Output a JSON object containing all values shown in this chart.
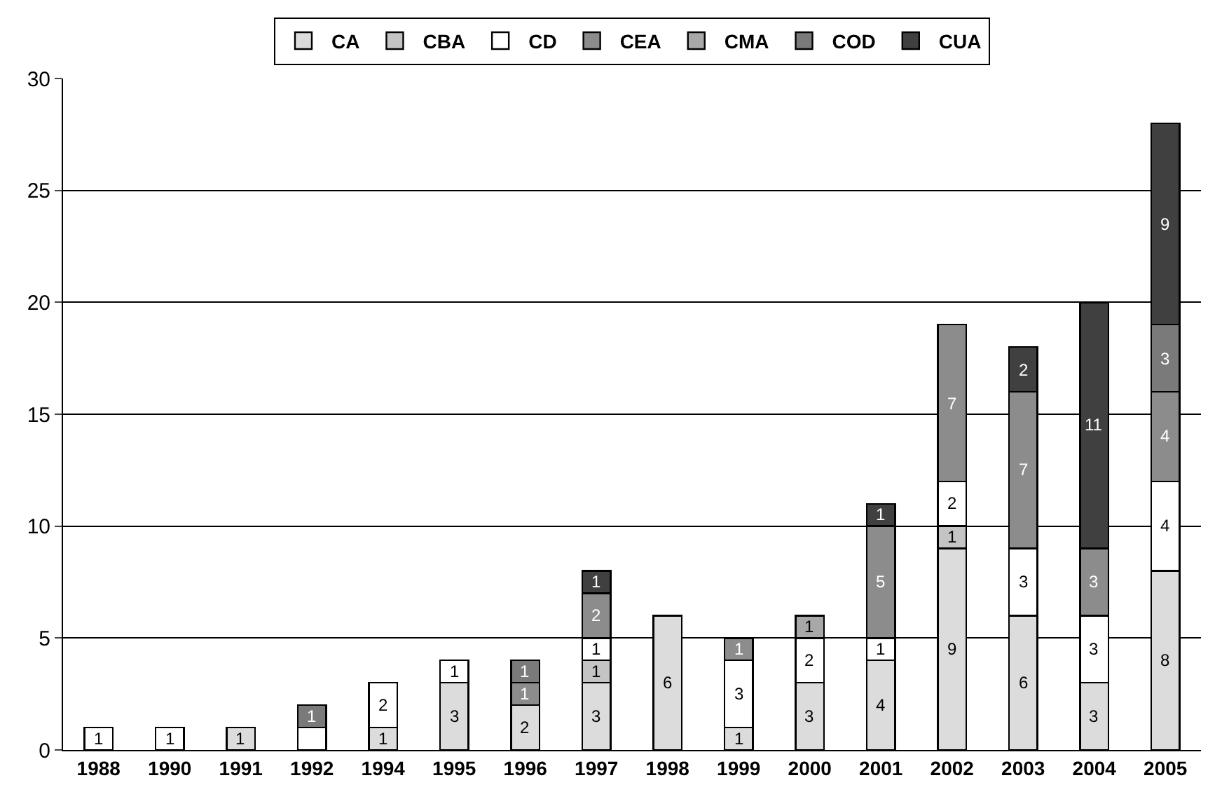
{
  "chart_data": {
    "type": "bar",
    "stacked": true,
    "categories": [
      "1988",
      "1990",
      "1991",
      "1992",
      "1994",
      "1995",
      "1996",
      "1997",
      "1998",
      "1999",
      "2000",
      "2001",
      "2002",
      "2003",
      "2004",
      "2005"
    ],
    "series": [
      {
        "name": "CA",
        "color": "#dcdcdc",
        "values": [
          null,
          null,
          1,
          null,
          1,
          3,
          2,
          3,
          6,
          1,
          3,
          4,
          9,
          6,
          3,
          8
        ],
        "value_labels": [
          null,
          null,
          "1",
          null,
          "1",
          "3",
          "2",
          "3",
          "6",
          "1",
          "3",
          "4",
          "9",
          "6",
          "3",
          "8"
        ]
      },
      {
        "name": "CBA",
        "color": "#c4c4c4",
        "values": [
          null,
          null,
          null,
          null,
          null,
          null,
          null,
          1,
          null,
          null,
          null,
          null,
          1,
          null,
          null,
          null
        ],
        "value_labels": [
          null,
          null,
          null,
          null,
          null,
          null,
          null,
          "1",
          null,
          null,
          null,
          null,
          "1",
          null,
          null,
          null
        ]
      },
      {
        "name": "CD",
        "color": "#ffffff",
        "values": [
          1,
          1,
          null,
          1,
          2,
          1,
          null,
          1,
          null,
          3,
          2,
          1,
          2,
          3,
          3,
          4
        ],
        "value_labels": [
          "1",
          "1",
          null,
          null,
          "2",
          "1",
          null,
          "1",
          null,
          "3",
          "2",
          "1",
          "2",
          "3",
          "3",
          "4"
        ]
      },
      {
        "name": "CEA",
        "color": "#8c8c8c",
        "values": [
          null,
          null,
          null,
          null,
          null,
          null,
          1,
          2,
          null,
          1,
          null,
          5,
          7,
          7,
          3,
          4
        ],
        "value_labels": [
          null,
          null,
          null,
          null,
          null,
          null,
          "1",
          "2",
          null,
          "1",
          null,
          "5",
          "7",
          "7",
          "3",
          "4"
        ]
      },
      {
        "name": "CMA",
        "color": "#a8a8a8",
        "values": [
          null,
          null,
          null,
          null,
          null,
          null,
          null,
          null,
          null,
          null,
          1,
          null,
          null,
          null,
          null,
          null
        ],
        "value_labels": [
          null,
          null,
          null,
          null,
          null,
          null,
          null,
          null,
          null,
          null,
          "1",
          null,
          null,
          null,
          null,
          null
        ]
      },
      {
        "name": "COD",
        "color": "#7a7a7a",
        "values": [
          null,
          null,
          null,
          1,
          null,
          null,
          1,
          null,
          null,
          null,
          null,
          null,
          null,
          null,
          null,
          3
        ],
        "value_labels": [
          null,
          null,
          null,
          "1",
          null,
          null,
          "1",
          null,
          null,
          null,
          null,
          null,
          null,
          null,
          null,
          "3"
        ]
      },
      {
        "name": "CUA",
        "color": "#404040",
        "values": [
          null,
          null,
          null,
          null,
          null,
          null,
          null,
          1,
          null,
          null,
          null,
          1,
          null,
          2,
          11,
          9
        ],
        "value_labels": [
          null,
          null,
          null,
          null,
          null,
          null,
          null,
          "1",
          null,
          null,
          null,
          "1",
          null,
          "2",
          "11",
          "9"
        ]
      }
    ],
    "ylim": [
      0,
      30
    ],
    "yticks": [
      0,
      5,
      10,
      15,
      20,
      25,
      30
    ],
    "grid": "y",
    "legend": "top"
  }
}
